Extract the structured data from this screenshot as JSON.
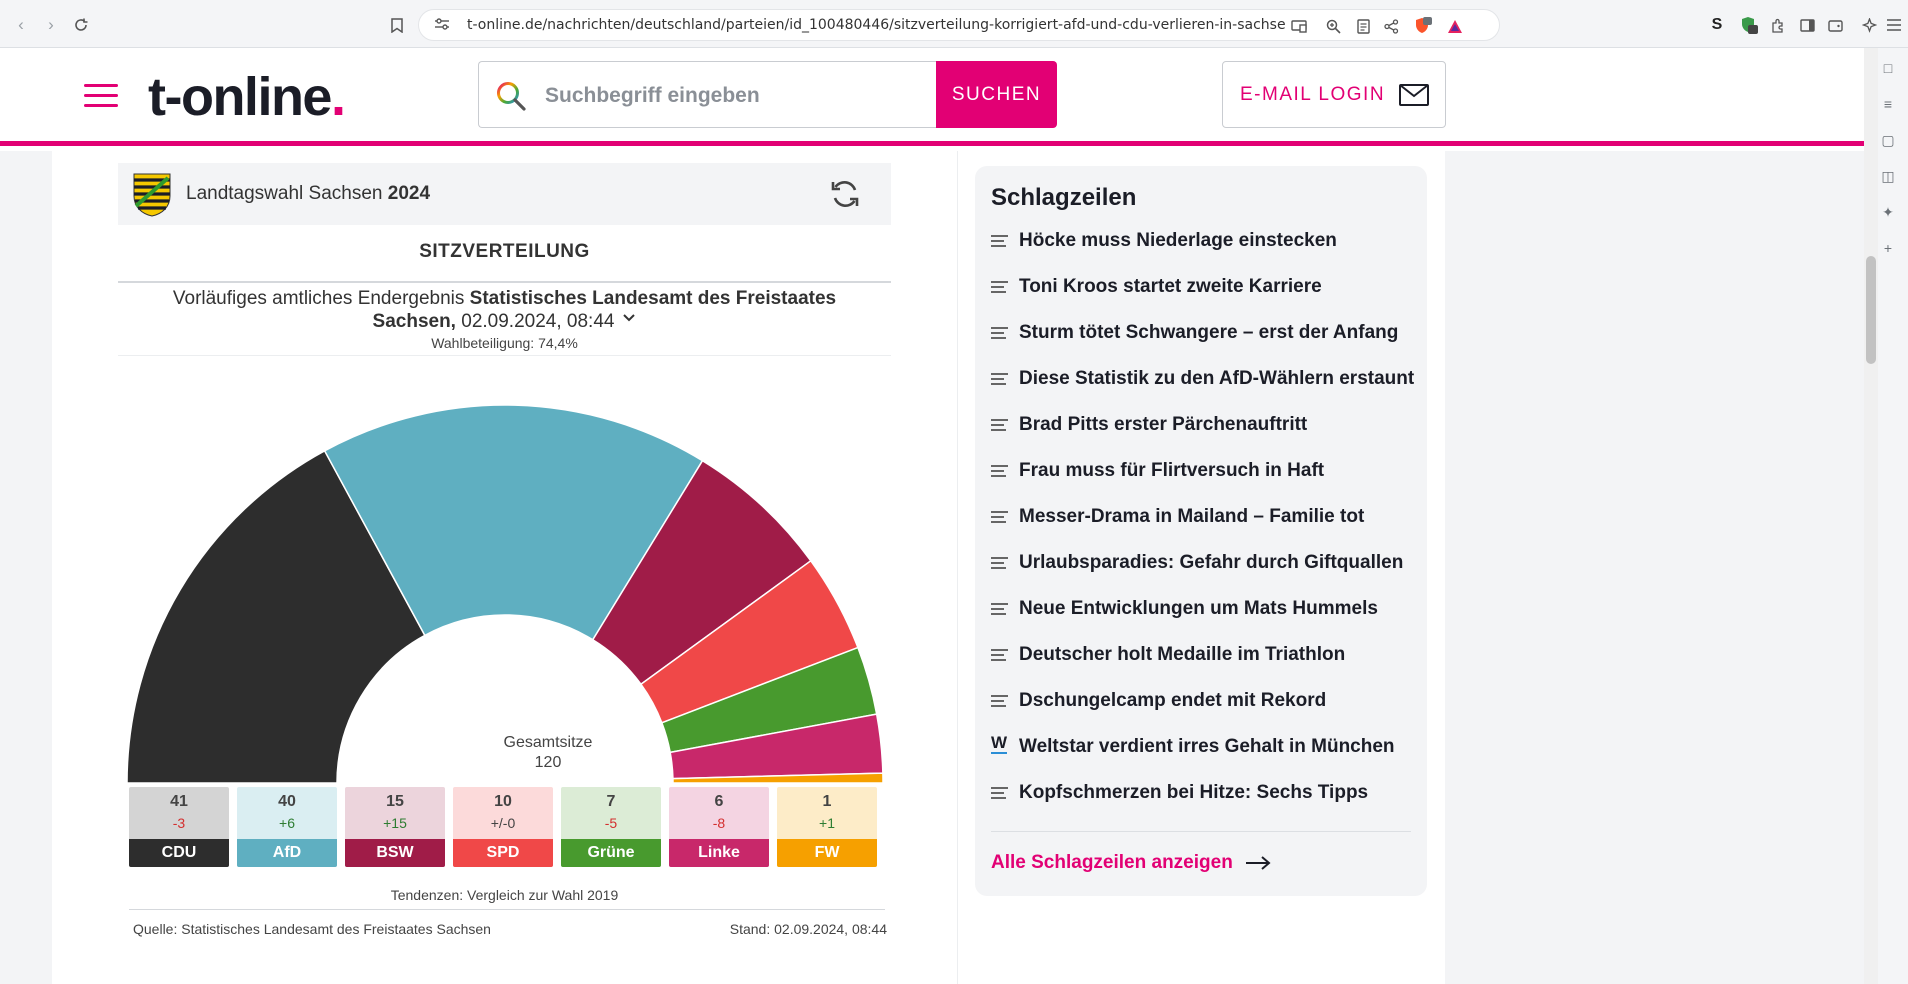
{
  "browser": {
    "url": "t-online.de/nachrichten/deutschland/parteien/id_100480446/sitzverteilung-korrigiert-afd-und-cdu-verlieren-in-sachsen-ein-mand...",
    "extension_badge": "2",
    "shield_badge": "10"
  },
  "header": {
    "logo_text": "t-online",
    "logo_dot": ".",
    "search_placeholder": "Suchbegriff eingeben",
    "search_button": "SUCHEN",
    "email_login": "E-MAIL LOGIN",
    "accent_color": "#e20074"
  },
  "widget": {
    "title_prefix": "Landtagswahl Sachsen",
    "title_year": "2024",
    "section": "SITZVERTEILUNG",
    "result_prefix": "Vorläufiges amtliches Endergebnis",
    "result_source": "Statistisches Landesamt des Freistaates Sachsen,",
    "result_date": "02.09.2024, 08:44",
    "turnout": "Wahlbeteiligung: 74,4%",
    "total_label": "Gesamtsitze",
    "total_seats": "120",
    "trend_note": "Tendenzen: Vergleich zur Wahl 2019",
    "source": "Quelle: Statistisches Landesamt des Freistaates Sachsen",
    "stand": "Stand: 02.09.2024, 08:44"
  },
  "chart_data": {
    "type": "pie",
    "variant": "semicircle",
    "total": 120,
    "categories": [
      "CDU",
      "AfD",
      "BSW",
      "SPD",
      "Grüne",
      "Linke",
      "FW"
    ],
    "values": [
      41,
      40,
      15,
      10,
      7,
      6,
      1
    ],
    "diffs": [
      "-3",
      "+6",
      "+15",
      "+/-0",
      "-5",
      "-8",
      "+1"
    ],
    "colors": [
      "#2d2d2d",
      "#5fafc1",
      "#a01c48",
      "#f04848",
      "#489a2e",
      "#c8286a",
      "#f6a000"
    ],
    "tile_bg": [
      "#d4d4d4",
      "#daeef2",
      "#ecd4dc",
      "#fcdada",
      "#dcecd6",
      "#f4d4e2",
      "#fdecc8"
    ],
    "diff_colors": [
      "#d32f2f",
      "#2e7d32",
      "#2e7d32",
      "#444444",
      "#d32f2f",
      "#d32f2f",
      "#2e7d32"
    ]
  },
  "headlines": {
    "title": "Schlagzeilen",
    "items": [
      {
        "text": "Höcke muss Niederlage einstecken",
        "icon": "article-icon"
      },
      {
        "text": "Toni Kroos startet zweite Karriere",
        "icon": "article-icon"
      },
      {
        "text": "Sturm tötet Schwangere – erst der Anfang",
        "icon": "article-icon"
      },
      {
        "text": "Diese Statistik zu den AfD-Wählern erstaunt",
        "icon": "article-icon"
      },
      {
        "text": "Brad Pitts erster Pärchenauftritt",
        "icon": "article-icon"
      },
      {
        "text": "Frau muss für Flirtversuch in Haft",
        "icon": "article-icon"
      },
      {
        "text": "Messer-Drama in Mailand – Familie tot",
        "icon": "article-icon"
      },
      {
        "text": "Urlaubsparadies: Gefahr durch Giftquallen",
        "icon": "article-icon"
      },
      {
        "text": "Neue Entwicklungen um Mats Hummels",
        "icon": "article-icon"
      },
      {
        "text": "Deutscher holt Medaille im Triathlon",
        "icon": "article-icon"
      },
      {
        "text": "Dschungelcamp endet mit Rekord",
        "icon": "article-icon"
      },
      {
        "text": "Weltstar verdient irres Gehalt in München",
        "icon": "w-icon",
        "icon_text": "W"
      },
      {
        "text": "Kopfschmerzen bei Hitze: Sechs Tipps",
        "icon": "article-icon"
      }
    ],
    "all_link": "Alle Schlagzeilen anzeigen"
  }
}
